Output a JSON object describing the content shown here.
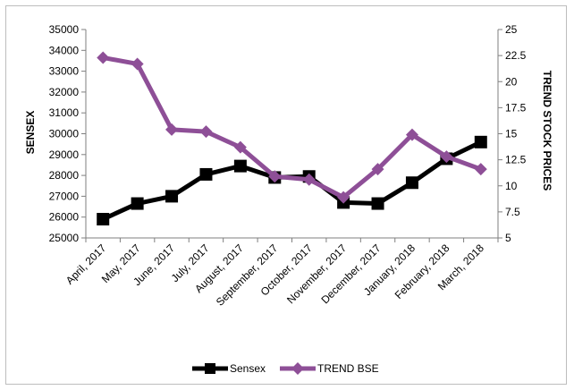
{
  "chart_data": {
    "type": "line",
    "categories": [
      "April, 2017",
      "May, 2017",
      "June, 2017",
      "July, 2017",
      "August, 2017",
      "September, 2017",
      "October, 2017",
      "November, 2017",
      "December, 2017",
      "January, 2018",
      "February, 2018",
      "March, 2018"
    ],
    "series": [
      {
        "name": "Sensex",
        "axis": "left",
        "color": "#000000",
        "marker": "square",
        "values": [
          25900,
          26650,
          27000,
          28050,
          28450,
          27900,
          27950,
          26700,
          26650,
          27650,
          28800,
          29600
        ]
      },
      {
        "name": "TREND BSE",
        "axis": "right",
        "color": "#8e4f97",
        "marker": "diamond",
        "values": [
          22.3,
          21.7,
          15.4,
          15.2,
          13.7,
          10.9,
          10.6,
          8.9,
          11.6,
          14.9,
          12.8,
          11.6
        ]
      }
    ],
    "ylabel": "SENSEX",
    "y2label": "TREND STOCK PRICES",
    "ylim": [
      25000,
      35000
    ],
    "y2lim": [
      5,
      25
    ],
    "yticks": [
      "25000",
      "26000",
      "27000",
      "28000",
      "29000",
      "30000",
      "31000",
      "32000",
      "33000",
      "34000",
      "35000"
    ],
    "y2ticks": [
      "5",
      "7.5",
      "10",
      "12.5",
      "15",
      "17.5",
      "20",
      "22.5",
      "25"
    ],
    "grid": false,
    "legend_position": "bottom"
  }
}
